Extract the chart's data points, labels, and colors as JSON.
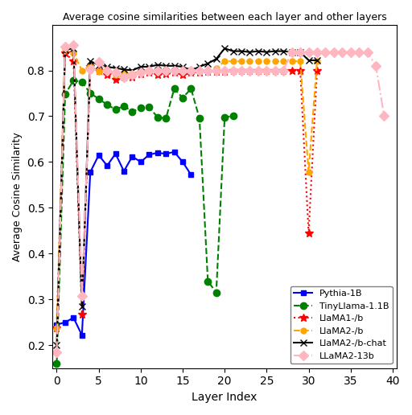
{
  "title": "Average cosine similarities between each layer and other layers",
  "xlabel": "Layer Index",
  "ylabel": "Average Cosine Similarity",
  "series": [
    {
      "label": "Pythia-1B",
      "color": "blue",
      "linestyle": "-",
      "marker": "s",
      "markersize": 5,
      "linewidth": 1.5,
      "x": [
        0,
        1,
        2,
        3,
        4,
        5,
        6,
        7,
        8,
        9,
        10,
        11,
        12,
        13,
        14,
        15,
        16
      ],
      "y": [
        0.245,
        0.25,
        0.26,
        0.222,
        0.578,
        0.615,
        0.592,
        0.618,
        0.58,
        0.612,
        0.6,
        0.616,
        0.62,
        0.618,
        0.622,
        0.6,
        0.572
      ]
    },
    {
      "label": "TinyLlama-1.1B",
      "color": "green",
      "linestyle": "--",
      "marker": "o",
      "markersize": 6,
      "linewidth": 1.5,
      "x": [
        0,
        1,
        2,
        3,
        4,
        5,
        6,
        7,
        8,
        9,
        10,
        11,
        12,
        13,
        14,
        15,
        16,
        17,
        18,
        19,
        20,
        21
      ],
      "y": [
        0.16,
        0.748,
        0.778,
        0.775,
        0.75,
        0.738,
        0.725,
        0.715,
        0.722,
        0.71,
        0.718,
        0.72,
        0.698,
        0.695,
        0.76,
        0.74,
        0.76,
        0.695,
        0.34,
        0.315,
        0.698,
        0.7
      ]
    },
    {
      "label": "LlaMA1-/b",
      "color": "red",
      "linestyle": ":",
      "marker": "*",
      "markersize": 7,
      "linewidth": 1.5,
      "x": [
        0,
        1,
        2,
        3,
        4,
        5,
        6,
        7,
        8,
        9,
        10,
        11,
        12,
        13,
        14,
        15,
        16,
        17,
        18,
        19,
        20,
        21,
        22,
        23,
        24,
        25,
        26,
        27,
        28,
        29,
        30,
        31
      ],
      "y": [
        0.238,
        0.838,
        0.82,
        0.268,
        0.808,
        0.8,
        0.79,
        0.78,
        0.785,
        0.785,
        0.792,
        0.795,
        0.79,
        0.792,
        0.795,
        0.79,
        0.795,
        0.796,
        0.798,
        0.798,
        0.798,
        0.8,
        0.8,
        0.8,
        0.8,
        0.8,
        0.8,
        0.8,
        0.8,
        0.8,
        0.445,
        0.8
      ]
    },
    {
      "label": "LlaMA2-/b",
      "color": "orange",
      "linestyle": "--",
      "marker": "o",
      "markersize": 5,
      "linewidth": 1.5,
      "x": [
        0,
        1,
        2,
        3,
        4,
        5,
        6,
        7,
        8,
        9,
        10,
        11,
        12,
        13,
        14,
        15,
        16,
        17,
        18,
        19,
        20,
        21,
        22,
        23,
        24,
        25,
        26,
        27,
        28,
        29,
        30,
        31
      ],
      "y": [
        0.238,
        0.845,
        0.838,
        0.8,
        0.81,
        0.798,
        0.802,
        0.79,
        0.795,
        0.792,
        0.8,
        0.8,
        0.8,
        0.8,
        0.8,
        0.8,
        0.8,
        0.8,
        0.8,
        0.805,
        0.82,
        0.82,
        0.82,
        0.82,
        0.82,
        0.82,
        0.82,
        0.82,
        0.82,
        0.82,
        0.578,
        0.82
      ]
    },
    {
      "label": "LlaMA2-/b-chat",
      "color": "black",
      "linestyle": "-",
      "marker": "x",
      "markersize": 6,
      "linewidth": 1.5,
      "x": [
        0,
        1,
        2,
        3,
        4,
        5,
        6,
        7,
        8,
        9,
        10,
        11,
        12,
        13,
        14,
        15,
        16,
        17,
        18,
        19,
        20,
        21,
        22,
        23,
        24,
        25,
        26,
        27,
        28,
        29,
        30,
        31
      ],
      "y": [
        0.2,
        0.845,
        0.848,
        0.285,
        0.82,
        0.812,
        0.808,
        0.805,
        0.802,
        0.8,
        0.808,
        0.808,
        0.812,
        0.81,
        0.81,
        0.808,
        0.8,
        0.808,
        0.815,
        0.825,
        0.848,
        0.842,
        0.842,
        0.84,
        0.842,
        0.84,
        0.842,
        0.842,
        0.84,
        0.84,
        0.822,
        0.822
      ]
    },
    {
      "label": "LLaMA2-13b",
      "color": "#FFB6C1",
      "linestyle": "-.",
      "marker": "D",
      "markersize": 6,
      "linewidth": 1.5,
      "x": [
        0,
        1,
        2,
        3,
        4,
        5,
        6,
        7,
        8,
        9,
        10,
        11,
        12,
        13,
        14,
        15,
        16,
        17,
        18,
        19,
        20,
        21,
        22,
        23,
        24,
        25,
        26,
        27,
        28,
        29,
        30,
        31,
        32,
        33,
        34,
        35,
        36,
        37,
        38,
        39
      ],
      "y": [
        0.185,
        0.852,
        0.855,
        0.308,
        0.802,
        0.818,
        0.8,
        0.795,
        0.785,
        0.79,
        0.795,
        0.8,
        0.8,
        0.8,
        0.8,
        0.8,
        0.8,
        0.8,
        0.8,
        0.8,
        0.8,
        0.8,
        0.8,
        0.8,
        0.8,
        0.8,
        0.8,
        0.8,
        0.84,
        0.84,
        0.84,
        0.84,
        0.84,
        0.84,
        0.84,
        0.84,
        0.84,
        0.84,
        0.81,
        0.7
      ]
    }
  ],
  "xlim": [
    -0.5,
    40.5
  ],
  "ylim": [
    0.15,
    0.9
  ],
  "xticks": [
    0,
    5,
    10,
    15,
    20,
    25,
    30,
    35,
    40
  ],
  "yticks": [
    0.2,
    0.3,
    0.4,
    0.5,
    0.6,
    0.7,
    0.8
  ]
}
